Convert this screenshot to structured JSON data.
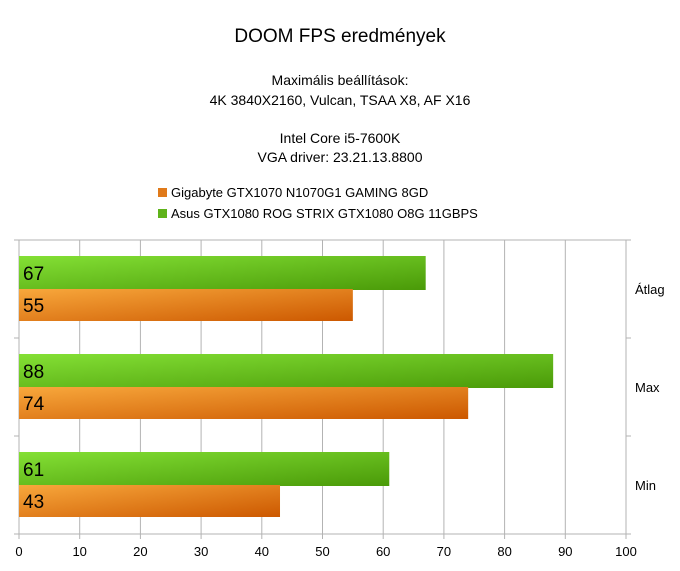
{
  "chart_data": {
    "type": "bar",
    "orientation": "horizontal",
    "title": "DOOM FPS eredmények",
    "subtitle_lines": [
      "Maximális beállítások:",
      "4K 3840X2160, Vulcan, TSAA X8, AF X16",
      "Intel Core i5-7600K",
      "VGA driver: 23.21.13.8800"
    ],
    "categories": [
      "Átlag",
      "Max",
      "Min"
    ],
    "series": [
      {
        "name": "Asus GTX1080 ROG STRIX GTX1080 O8G 11GBPS",
        "values": [
          67,
          88,
          61
        ],
        "color": "#5fb31a",
        "gradient": [
          "#84e035",
          "#4a9a08"
        ]
      },
      {
        "name": "Gigabyte GTX1070 N1070G1 GAMING 8GD",
        "values": [
          55,
          74,
          43
        ],
        "color": "#e07a1a",
        "gradient": [
          "#f8a83c",
          "#cc5800"
        ]
      }
    ],
    "legend_order": [
      1,
      0
    ],
    "xlim": [
      0,
      100
    ],
    "xticks": [
      0,
      10,
      20,
      30,
      40,
      50,
      60,
      70,
      80,
      90,
      100
    ],
    "grid": true,
    "legend_position": "top-left",
    "data_labels": "inside-left",
    "xlabel": "",
    "ylabel": ""
  }
}
